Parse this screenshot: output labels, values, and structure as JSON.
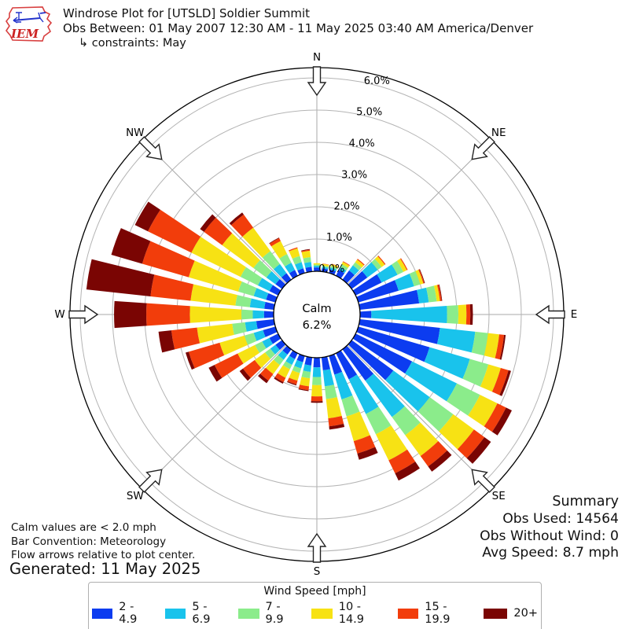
{
  "header": {
    "title": "Windrose Plot for [UTSLD] Soldier Summit",
    "obs_between": "Obs Between: 01 May 2007 12:30 AM - 11 May 2025 03:40 AM America/Denver",
    "constraints": "↳ constraints: May",
    "logo_text": "IEM"
  },
  "plot": {
    "compass_labels": [
      "N",
      "NE",
      "E",
      "SE",
      "S",
      "SW",
      "W",
      "NW"
    ],
    "calm_label": "Calm",
    "calm_value": "6.2%"
  },
  "notes": {
    "line1": "Calm values are < 2.0 mph",
    "line2": "Bar Convention: Meteorology",
    "line3": "Flow arrows relative to plot center."
  },
  "generated": "Generated: 11 May 2025",
  "summary": {
    "title": "Summary",
    "obs_used": "Obs Used: 14564",
    "obs_without_wind": "Obs Without Wind: 0",
    "avg_speed": "Avg Speed: 8.7 mph"
  },
  "legend": {
    "title": "Wind Speed [mph]",
    "bins": [
      {
        "label": "2 - 4.9",
        "color": "#0c3cf0"
      },
      {
        "label": "5 - 6.9",
        "color": "#19c3ec"
      },
      {
        "label": "7 - 9.9",
        "color": "#8bec8b"
      },
      {
        "label": "10 - 14.9",
        "color": "#f7e214"
      },
      {
        "label": "15 - 19.9",
        "color": "#f23d0b"
      },
      {
        "label": "20+",
        "color": "#7a0503"
      }
    ]
  },
  "chart_data": {
    "type": "windrose",
    "units": "percent frequency of wind direction by speed bin",
    "bar_convention": "Meteorology",
    "calm_percent": 6.2,
    "direction_step_deg": 10,
    "directions_deg": [
      0,
      10,
      20,
      30,
      40,
      50,
      60,
      70,
      80,
      90,
      100,
      110,
      120,
      130,
      140,
      150,
      160,
      170,
      180,
      190,
      200,
      210,
      220,
      230,
      240,
      250,
      260,
      270,
      280,
      290,
      300,
      310,
      320,
      330,
      340,
      350
    ],
    "r_axis": {
      "min": 0,
      "max": 6,
      "tick_step": 1,
      "labels": [
        "0.0%",
        "1.0%",
        "2.0%",
        "3.0%",
        "4.0%",
        "5.0%",
        "6.0%"
      ]
    },
    "series": [
      {
        "name": "2 - 4.9",
        "color": "#0c3cf0",
        "values": [
          0.12,
          0.1,
          0.12,
          0.2,
          0.35,
          0.6,
          0.9,
          1.3,
          1.85,
          0.35,
          2.5,
          2.3,
          1.95,
          1.6,
          1.2,
          0.9,
          0.6,
          0.4,
          0.3,
          0.25,
          0.2,
          0.2,
          0.2,
          0.25,
          0.3,
          0.4,
          0.55,
          0.3,
          0.3,
          0.3,
          0.3,
          0.25,
          0.25,
          0.2,
          0.15,
          0.15
        ]
      },
      {
        "name": "5 - 6.9",
        "color": "#19c3ec",
        "values": [
          0.05,
          0.05,
          0.06,
          0.1,
          0.2,
          0.4,
          0.55,
          0.5,
          0.3,
          2.35,
          1.1,
          1.3,
          1.55,
          1.4,
          1.4,
          1.2,
          0.8,
          0.5,
          0.3,
          0.2,
          0.2,
          0.2,
          0.2,
          0.2,
          0.25,
          0.3,
          0.35,
          0.35,
          0.45,
          0.4,
          0.4,
          0.35,
          0.35,
          0.25,
          0.2,
          0.15
        ]
      },
      {
        "name": "7 - 9.9",
        "color": "#8bec8b",
        "values": [
          0.04,
          0.04,
          0.05,
          0.1,
          0.12,
          0.15,
          0.2,
          0.2,
          0.25,
          0.35,
          0.4,
          0.6,
          0.8,
          0.9,
          0.7,
          0.7,
          0.55,
          0.4,
          0.25,
          0.2,
          0.15,
          0.15,
          0.2,
          0.2,
          0.25,
          0.3,
          0.4,
          0.35,
          0.45,
          0.5,
          0.6,
          0.5,
          0.5,
          0.3,
          0.2,
          0.15
        ]
      },
      {
        "name": "10 - 14.9",
        "color": "#f7e214",
        "values": [
          0.04,
          0.05,
          0.06,
          0.08,
          0.1,
          0.12,
          0.12,
          0.1,
          0.1,
          0.25,
          0.35,
          0.4,
          0.6,
          0.8,
          0.8,
          0.9,
          0.8,
          0.6,
          0.35,
          0.25,
          0.25,
          0.3,
          0.35,
          0.4,
          0.6,
          0.8,
          1.1,
          1.6,
          1.4,
          1.6,
          1.7,
          1.2,
          0.9,
          0.45,
          0.25,
          0.2
        ]
      },
      {
        "name": "15 - 19.9",
        "color": "#f23d0b",
        "values": [
          0.0,
          0.01,
          0.01,
          0.02,
          0.03,
          0.03,
          0.03,
          0.03,
          0.05,
          0.12,
          0.15,
          0.25,
          0.3,
          0.4,
          0.4,
          0.45,
          0.4,
          0.25,
          0.15,
          0.12,
          0.12,
          0.15,
          0.25,
          0.45,
          0.8,
          1.0,
          0.8,
          1.35,
          1.25,
          1.5,
          1.5,
          0.7,
          0.5,
          0.1,
          0.03,
          0.03
        ]
      },
      {
        "name": "20+",
        "color": "#7a0503",
        "values": [
          0.0,
          0.0,
          0.0,
          0.0,
          0.0,
          0.0,
          0.0,
          0.02,
          0.02,
          0.08,
          0.05,
          0.08,
          0.2,
          0.25,
          0.2,
          0.25,
          0.2,
          0.1,
          0.05,
          0.03,
          0.03,
          0.05,
          0.1,
          0.13,
          0.2,
          0.1,
          0.4,
          1.0,
          2.0,
          1.0,
          0.45,
          0.15,
          0.08,
          0.02,
          0.0,
          0.02
        ]
      }
    ],
    "title": "Windrose Plot for [UTSLD] Soldier Summit",
    "subtitle": "Obs Between: 01 May 2007 12:30 AM - 11 May 2025 03:40 AM America/Denver"
  }
}
